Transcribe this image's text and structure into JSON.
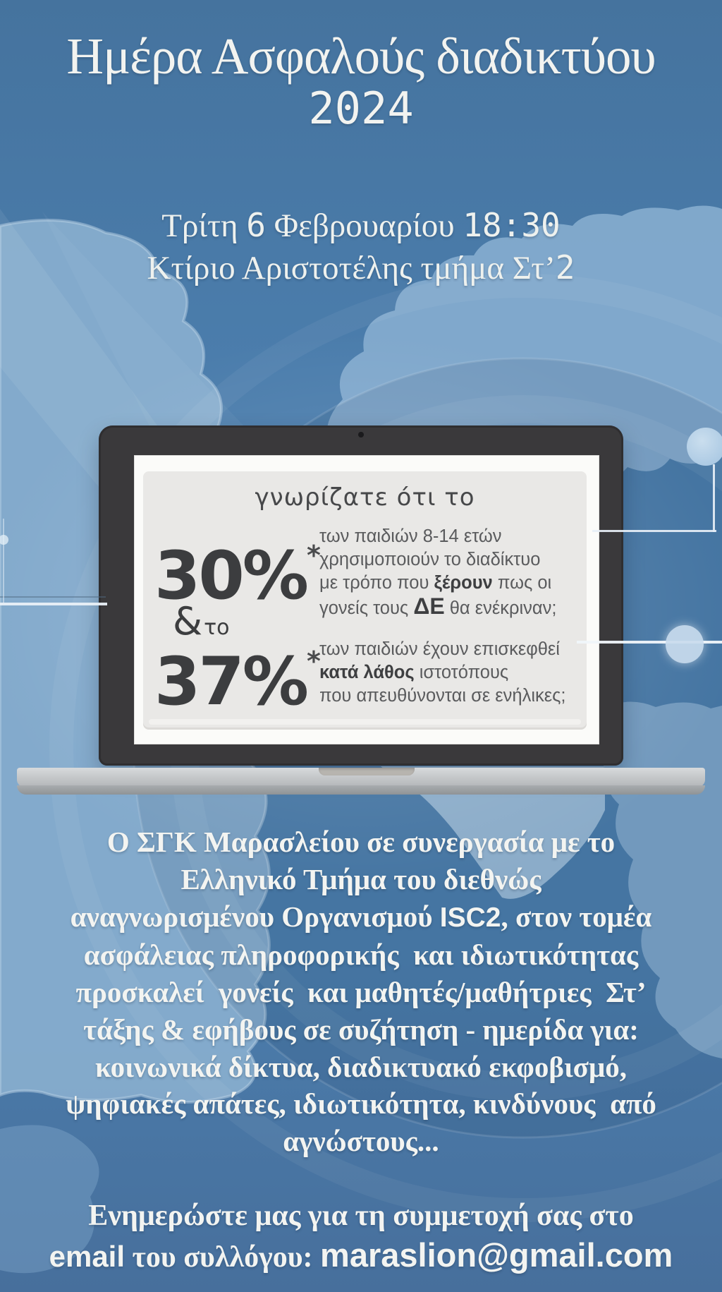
{
  "title": {
    "line1": "Ημέρα Ασφαλούς διαδικτύου",
    "year": "2024"
  },
  "schedule": {
    "line1": [
      {
        "t": "Τρίτη ",
        "f": "serif"
      },
      {
        "t": "6",
        "f": "mono"
      },
      {
        "t": " Φεβρουαρίου ",
        "f": "serif"
      },
      {
        "t": "18:30",
        "f": "mono"
      }
    ],
    "line2": [
      {
        "t": "Κτίριο Αριστοτέλης τμήμα Στ’",
        "f": "serif"
      },
      {
        "t": "2",
        "f": "mono"
      }
    ]
  },
  "infographic": {
    "heading": "γνωρίζατε ότι το",
    "stat1": {
      "value": "30%",
      "footnote_mark": "*"
    },
    "ampersand": "&",
    "ampersand_suffix": "το",
    "stat2": {
      "value": "37%",
      "footnote_mark": "*"
    },
    "stat1_lines": [
      [
        {
          "t": "των παιδιών 8-14 ετών"
        }
      ],
      [
        {
          "t": "χρησιμοποιούν το διαδίκτυο"
        }
      ],
      [
        {
          "t": "με τρόπο που "
        },
        {
          "t": "ξέρουν",
          "b": true
        },
        {
          "t": " πως οι"
        }
      ],
      [
        {
          "t": "γονείς τους "
        },
        {
          "t": "ΔΕ",
          "b": true,
          "big": true
        },
        {
          "t": " θα ενέκριναν;"
        }
      ]
    ],
    "stat2_lines": [
      [
        {
          "t": "των παιδιών έχουν επισκεφθεί"
        }
      ],
      [
        {
          "t": "κατά λάθος",
          "b": true
        },
        {
          "t": " ιστοτόπους"
        }
      ],
      [
        {
          "t": "που απευθύνονται σε ενήλικες;"
        }
      ]
    ]
  },
  "body": {
    "lines": [
      "Ο ΣΓΚ Μαρασλείου σε συνεργασία με το",
      "Ελληνικό Τμήμα του διεθνώς",
      [
        {
          "t": "αναγνωρισμένου Οργανισμού "
        },
        {
          "t": "ISC2",
          "f": "sans"
        },
        {
          "t": ", στον τομέα"
        }
      ],
      "ασφάλειας πληροφορικής  και ιδιωτικότητας",
      "προσκαλεί  γονείς  και μαθητές/μαθήτριες  Στ’",
      "τάξης & εφήβους σε συζήτηση - ημερίδα για:",
      "κοινωνικά δίκτυα, διαδικτυακό εκφοβισμό,",
      "ψηφιακές απάτες, ιδιωτικότητα, κινδύνους  από",
      "αγνώστους..."
    ]
  },
  "footer": {
    "line1": "Ενημερώστε μας για τη συμμετοχή σας στο",
    "line2": [
      {
        "t": "email",
        "f": "sans"
      },
      {
        "t": " του συλλόγου: ",
        "f": "serif"
      },
      {
        "t": "maraslion@gmail.com",
        "f": "sansbig"
      }
    ]
  },
  "colors": {
    "background": "#4b7cab",
    "land": "#8bb0d0",
    "laptop_frame": "#3a393b",
    "screen_card": "#e9e8e6",
    "stat_number": "#3c3d3f",
    "stat_text": "#58595b",
    "light_text": "#f3f4f1"
  }
}
